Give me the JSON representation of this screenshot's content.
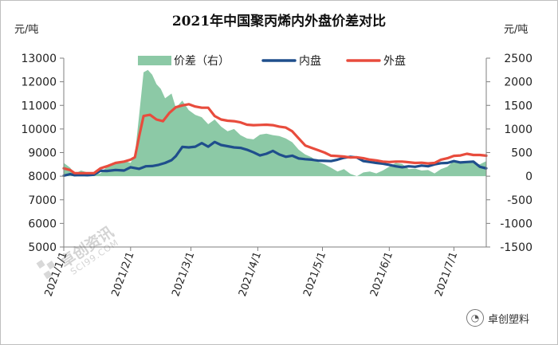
{
  "chart_data": {
    "type": "line",
    "title": "2021年中国聚丙烯内外盘价差对比",
    "left_unit": "元/吨",
    "right_unit": "元/吨",
    "left_axis": {
      "min": 5000,
      "max": 13000,
      "step": 1000,
      "ticks": [
        "13000",
        "12000",
        "11000",
        "10000",
        "9000",
        "8000",
        "7000",
        "6000",
        "5000"
      ]
    },
    "right_axis": {
      "min": -1500,
      "max": 2500,
      "step": 500,
      "ticks": [
        "2500",
        "2000",
        "1500",
        "1000",
        "500",
        "0",
        "-500",
        "-1000",
        "-1500"
      ]
    },
    "x_range": [
      0,
      196
    ],
    "x_ticks": [
      {
        "label": "2021/1/1",
        "day": 0
      },
      {
        "label": "2021/2/1",
        "day": 31
      },
      {
        "label": "2021/3/1",
        "day": 59
      },
      {
        "label": "2021/4/1",
        "day": 90
      },
      {
        "label": "2021/5/1",
        "day": 120
      },
      {
        "label": "2021/6/1",
        "day": 151
      },
      {
        "label": "2021/7/1",
        "day": 181
      }
    ],
    "legend": {
      "placement": "top"
    },
    "series": [
      {
        "name": "价差（右）",
        "axis": "right",
        "kind": "area",
        "color": "#8cc9a6",
        "points": [
          [
            0,
            280
          ],
          [
            3,
            180
          ],
          [
            5,
            50
          ],
          [
            8,
            120
          ],
          [
            11,
            80
          ],
          [
            14,
            40
          ],
          [
            17,
            60
          ],
          [
            20,
            200
          ],
          [
            24,
            300
          ],
          [
            28,
            330
          ],
          [
            31,
            280
          ],
          [
            33,
            450
          ],
          [
            35,
            1300
          ],
          [
            37,
            2200
          ],
          [
            39,
            2250
          ],
          [
            41,
            2150
          ],
          [
            43,
            1950
          ],
          [
            45,
            1850
          ],
          [
            47,
            1650
          ],
          [
            50,
            1750
          ],
          [
            52,
            1450
          ],
          [
            55,
            1600
          ],
          [
            58,
            1400
          ],
          [
            61,
            1300
          ],
          [
            64,
            1250
          ],
          [
            67,
            1100
          ],
          [
            70,
            1200
          ],
          [
            73,
            1050
          ],
          [
            76,
            950
          ],
          [
            79,
            1000
          ],
          [
            82,
            870
          ],
          [
            85,
            800
          ],
          [
            88,
            780
          ],
          [
            91,
            880
          ],
          [
            94,
            900
          ],
          [
            97,
            870
          ],
          [
            100,
            850
          ],
          [
            103,
            800
          ],
          [
            106,
            720
          ],
          [
            109,
            560
          ],
          [
            112,
            460
          ],
          [
            115,
            400
          ],
          [
            118,
            300
          ],
          [
            121,
            250
          ],
          [
            124,
            180
          ],
          [
            127,
            100
          ],
          [
            130,
            150
          ],
          [
            133,
            50
          ],
          [
            136,
            0
          ],
          [
            139,
            80
          ],
          [
            142,
            100
          ],
          [
            145,
            60
          ],
          [
            148,
            120
          ],
          [
            151,
            200
          ],
          [
            154,
            280
          ],
          [
            157,
            260
          ],
          [
            160,
            150
          ],
          [
            163,
            160
          ],
          [
            166,
            120
          ],
          [
            169,
            130
          ],
          [
            172,
            60
          ],
          [
            175,
            150
          ],
          [
            178,
            200
          ],
          [
            181,
            330
          ],
          [
            184,
            280
          ],
          [
            187,
            300
          ],
          [
            190,
            280
          ],
          [
            193,
            250
          ],
          [
            196,
            320
          ]
        ]
      },
      {
        "name": "内盘",
        "axis": "left",
        "kind": "line",
        "color": "#1f4e8c",
        "points": [
          [
            0,
            8020
          ],
          [
            3,
            8090
          ],
          [
            5,
            8040
          ],
          [
            8,
            8050
          ],
          [
            11,
            8040
          ],
          [
            14,
            8060
          ],
          [
            17,
            8230
          ],
          [
            20,
            8220
          ],
          [
            24,
            8260
          ],
          [
            28,
            8240
          ],
          [
            31,
            8380
          ],
          [
            35,
            8310
          ],
          [
            38,
            8420
          ],
          [
            41,
            8430
          ],
          [
            44,
            8480
          ],
          [
            47,
            8560
          ],
          [
            50,
            8680
          ],
          [
            52,
            8850
          ],
          [
            55,
            9240
          ],
          [
            58,
            9220
          ],
          [
            61,
            9250
          ],
          [
            64,
            9400
          ],
          [
            67,
            9250
          ],
          [
            70,
            9450
          ],
          [
            73,
            9320
          ],
          [
            76,
            9270
          ],
          [
            79,
            9220
          ],
          [
            82,
            9200
          ],
          [
            85,
            9120
          ],
          [
            88,
            9010
          ],
          [
            91,
            8880
          ],
          [
            94,
            8950
          ],
          [
            97,
            9070
          ],
          [
            100,
            8920
          ],
          [
            103,
            8820
          ],
          [
            106,
            8870
          ],
          [
            109,
            8750
          ],
          [
            112,
            8720
          ],
          [
            115,
            8700
          ],
          [
            118,
            8660
          ],
          [
            121,
            8650
          ],
          [
            124,
            8640
          ],
          [
            127,
            8700
          ],
          [
            130,
            8780
          ],
          [
            133,
            8820
          ],
          [
            136,
            8790
          ],
          [
            139,
            8640
          ],
          [
            142,
            8600
          ],
          [
            145,
            8560
          ],
          [
            148,
            8530
          ],
          [
            151,
            8480
          ],
          [
            154,
            8420
          ],
          [
            157,
            8380
          ],
          [
            160,
            8420
          ],
          [
            163,
            8400
          ],
          [
            166,
            8450
          ],
          [
            169,
            8420
          ],
          [
            172,
            8500
          ],
          [
            175,
            8550
          ],
          [
            178,
            8560
          ],
          [
            181,
            8640
          ],
          [
            184,
            8580
          ],
          [
            187,
            8600
          ],
          [
            190,
            8620
          ],
          [
            193,
            8400
          ],
          [
            196,
            8330
          ]
        ]
      },
      {
        "name": "外盘",
        "axis": "left",
        "kind": "line",
        "color": "#e84c3d",
        "points": [
          [
            0,
            8330
          ],
          [
            3,
            8260
          ],
          [
            5,
            8130
          ],
          [
            8,
            8130
          ],
          [
            11,
            8130
          ],
          [
            14,
            8130
          ],
          [
            17,
            8330
          ],
          [
            20,
            8420
          ],
          [
            24,
            8560
          ],
          [
            28,
            8620
          ],
          [
            31,
            8700
          ],
          [
            33,
            8800
          ],
          [
            35,
            9700
          ],
          [
            37,
            10550
          ],
          [
            40,
            10600
          ],
          [
            43,
            10400
          ],
          [
            46,
            10330
          ],
          [
            49,
            10680
          ],
          [
            52,
            10920
          ],
          [
            55,
            11000
          ],
          [
            58,
            11050
          ],
          [
            61,
            10950
          ],
          [
            64,
            10900
          ],
          [
            67,
            10900
          ],
          [
            70,
            10550
          ],
          [
            73,
            10400
          ],
          [
            76,
            10350
          ],
          [
            79,
            10330
          ],
          [
            82,
            10280
          ],
          [
            85,
            10180
          ],
          [
            88,
            10160
          ],
          [
            91,
            10170
          ],
          [
            94,
            10180
          ],
          [
            97,
            10160
          ],
          [
            100,
            10100
          ],
          [
            103,
            10060
          ],
          [
            106,
            9900
          ],
          [
            109,
            9600
          ],
          [
            112,
            9300
          ],
          [
            115,
            9200
          ],
          [
            118,
            9100
          ],
          [
            121,
            9000
          ],
          [
            124,
            8870
          ],
          [
            127,
            8850
          ],
          [
            130,
            8830
          ],
          [
            133,
            8790
          ],
          [
            136,
            8800
          ],
          [
            139,
            8760
          ],
          [
            142,
            8700
          ],
          [
            145,
            8670
          ],
          [
            148,
            8620
          ],
          [
            151,
            8600
          ],
          [
            154,
            8620
          ],
          [
            157,
            8620
          ],
          [
            160,
            8590
          ],
          [
            163,
            8560
          ],
          [
            166,
            8570
          ],
          [
            169,
            8540
          ],
          [
            172,
            8560
          ],
          [
            175,
            8700
          ],
          [
            178,
            8760
          ],
          [
            181,
            8860
          ],
          [
            184,
            8880
          ],
          [
            187,
            8950
          ],
          [
            190,
            8900
          ],
          [
            193,
            8900
          ],
          [
            196,
            8870
          ]
        ]
      }
    ]
  },
  "watermark": {
    "brand": "卓创资讯",
    "site": "SCI99.COM"
  },
  "logo": {
    "icon": "wechat-icon",
    "text": "卓创塑料"
  }
}
